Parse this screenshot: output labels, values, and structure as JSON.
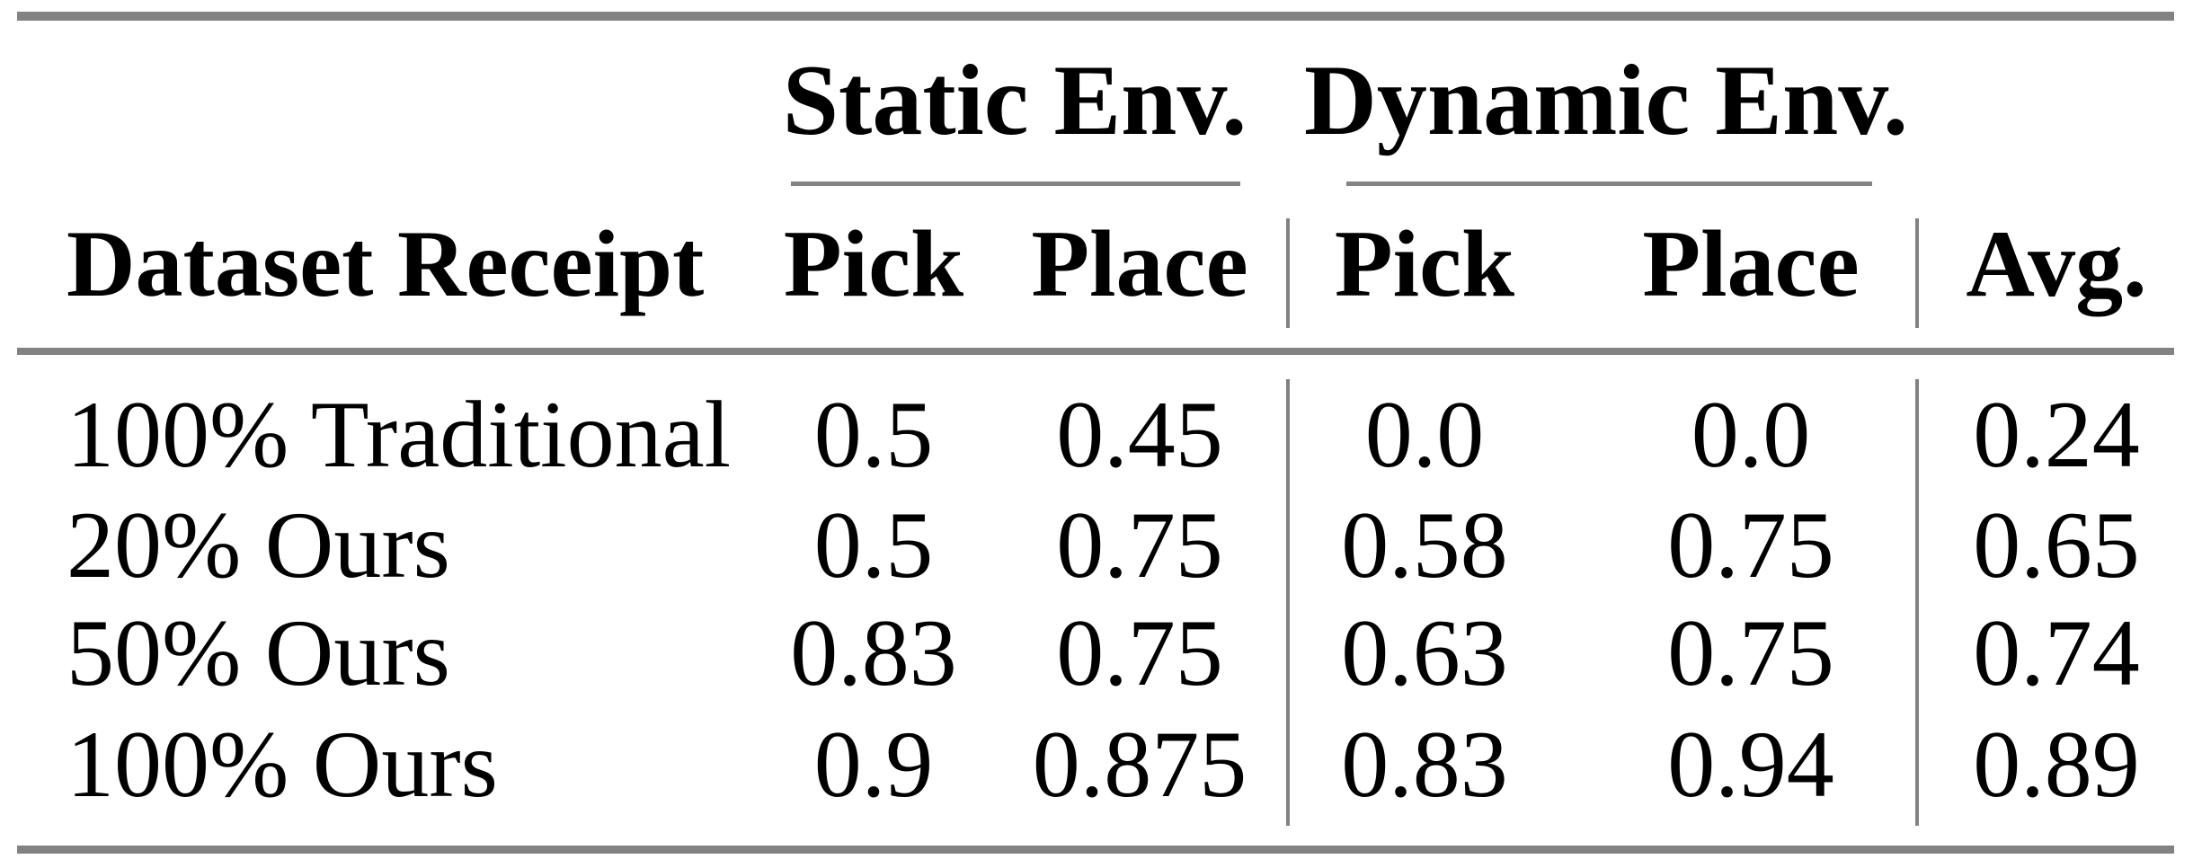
{
  "figure": {
    "kind": "paper-results-table",
    "corner_header": "Dataset Receipt",
    "group_headers": [
      {
        "label": "Static Env.",
        "columns": [
          "Pick",
          "Place"
        ]
      },
      {
        "label": "Dynamic Env.",
        "columns": [
          "Pick",
          "Place"
        ]
      }
    ],
    "avg_header": "Avg.",
    "rows": [
      {
        "label": "100% Traditional",
        "static_pick": "0.5",
        "static_place": "0.45",
        "dynamic_pick": "0.0",
        "dynamic_place": "0.0",
        "avg": "0.24"
      },
      {
        "label": "20% Ours",
        "static_pick": "0.5",
        "static_place": "0.75",
        "dynamic_pick": "0.58",
        "dynamic_place": "0.75",
        "avg": "0.65"
      },
      {
        "label": "50% Ours",
        "static_pick": "0.83",
        "static_place": "0.75",
        "dynamic_pick": "0.63",
        "dynamic_place": "0.75",
        "avg": "0.74"
      },
      {
        "label": "100% Ours",
        "static_pick": "0.9",
        "static_place": "0.875",
        "dynamic_pick": "0.83",
        "dynamic_place": "0.94",
        "avg": "0.89"
      }
    ],
    "colors": {
      "rule_gray": "#828282",
      "text": "#000000",
      "background": "#ffffff"
    }
  },
  "chart_data": {
    "type": "table",
    "columns": [
      "Dataset Receipt",
      "Static Env. Pick",
      "Static Env. Place",
      "Dynamic Env. Pick",
      "Dynamic Env. Place",
      "Avg."
    ],
    "rows": [
      [
        "100% Traditional",
        0.5,
        0.45,
        0.0,
        0.0,
        0.24
      ],
      [
        "20% Ours",
        0.5,
        0.75,
        0.58,
        0.75,
        0.65
      ],
      [
        "50% Ours",
        0.83,
        0.75,
        0.63,
        0.75,
        0.74
      ],
      [
        "100% Ours",
        0.9,
        0.875,
        0.83,
        0.94,
        0.89
      ]
    ]
  }
}
